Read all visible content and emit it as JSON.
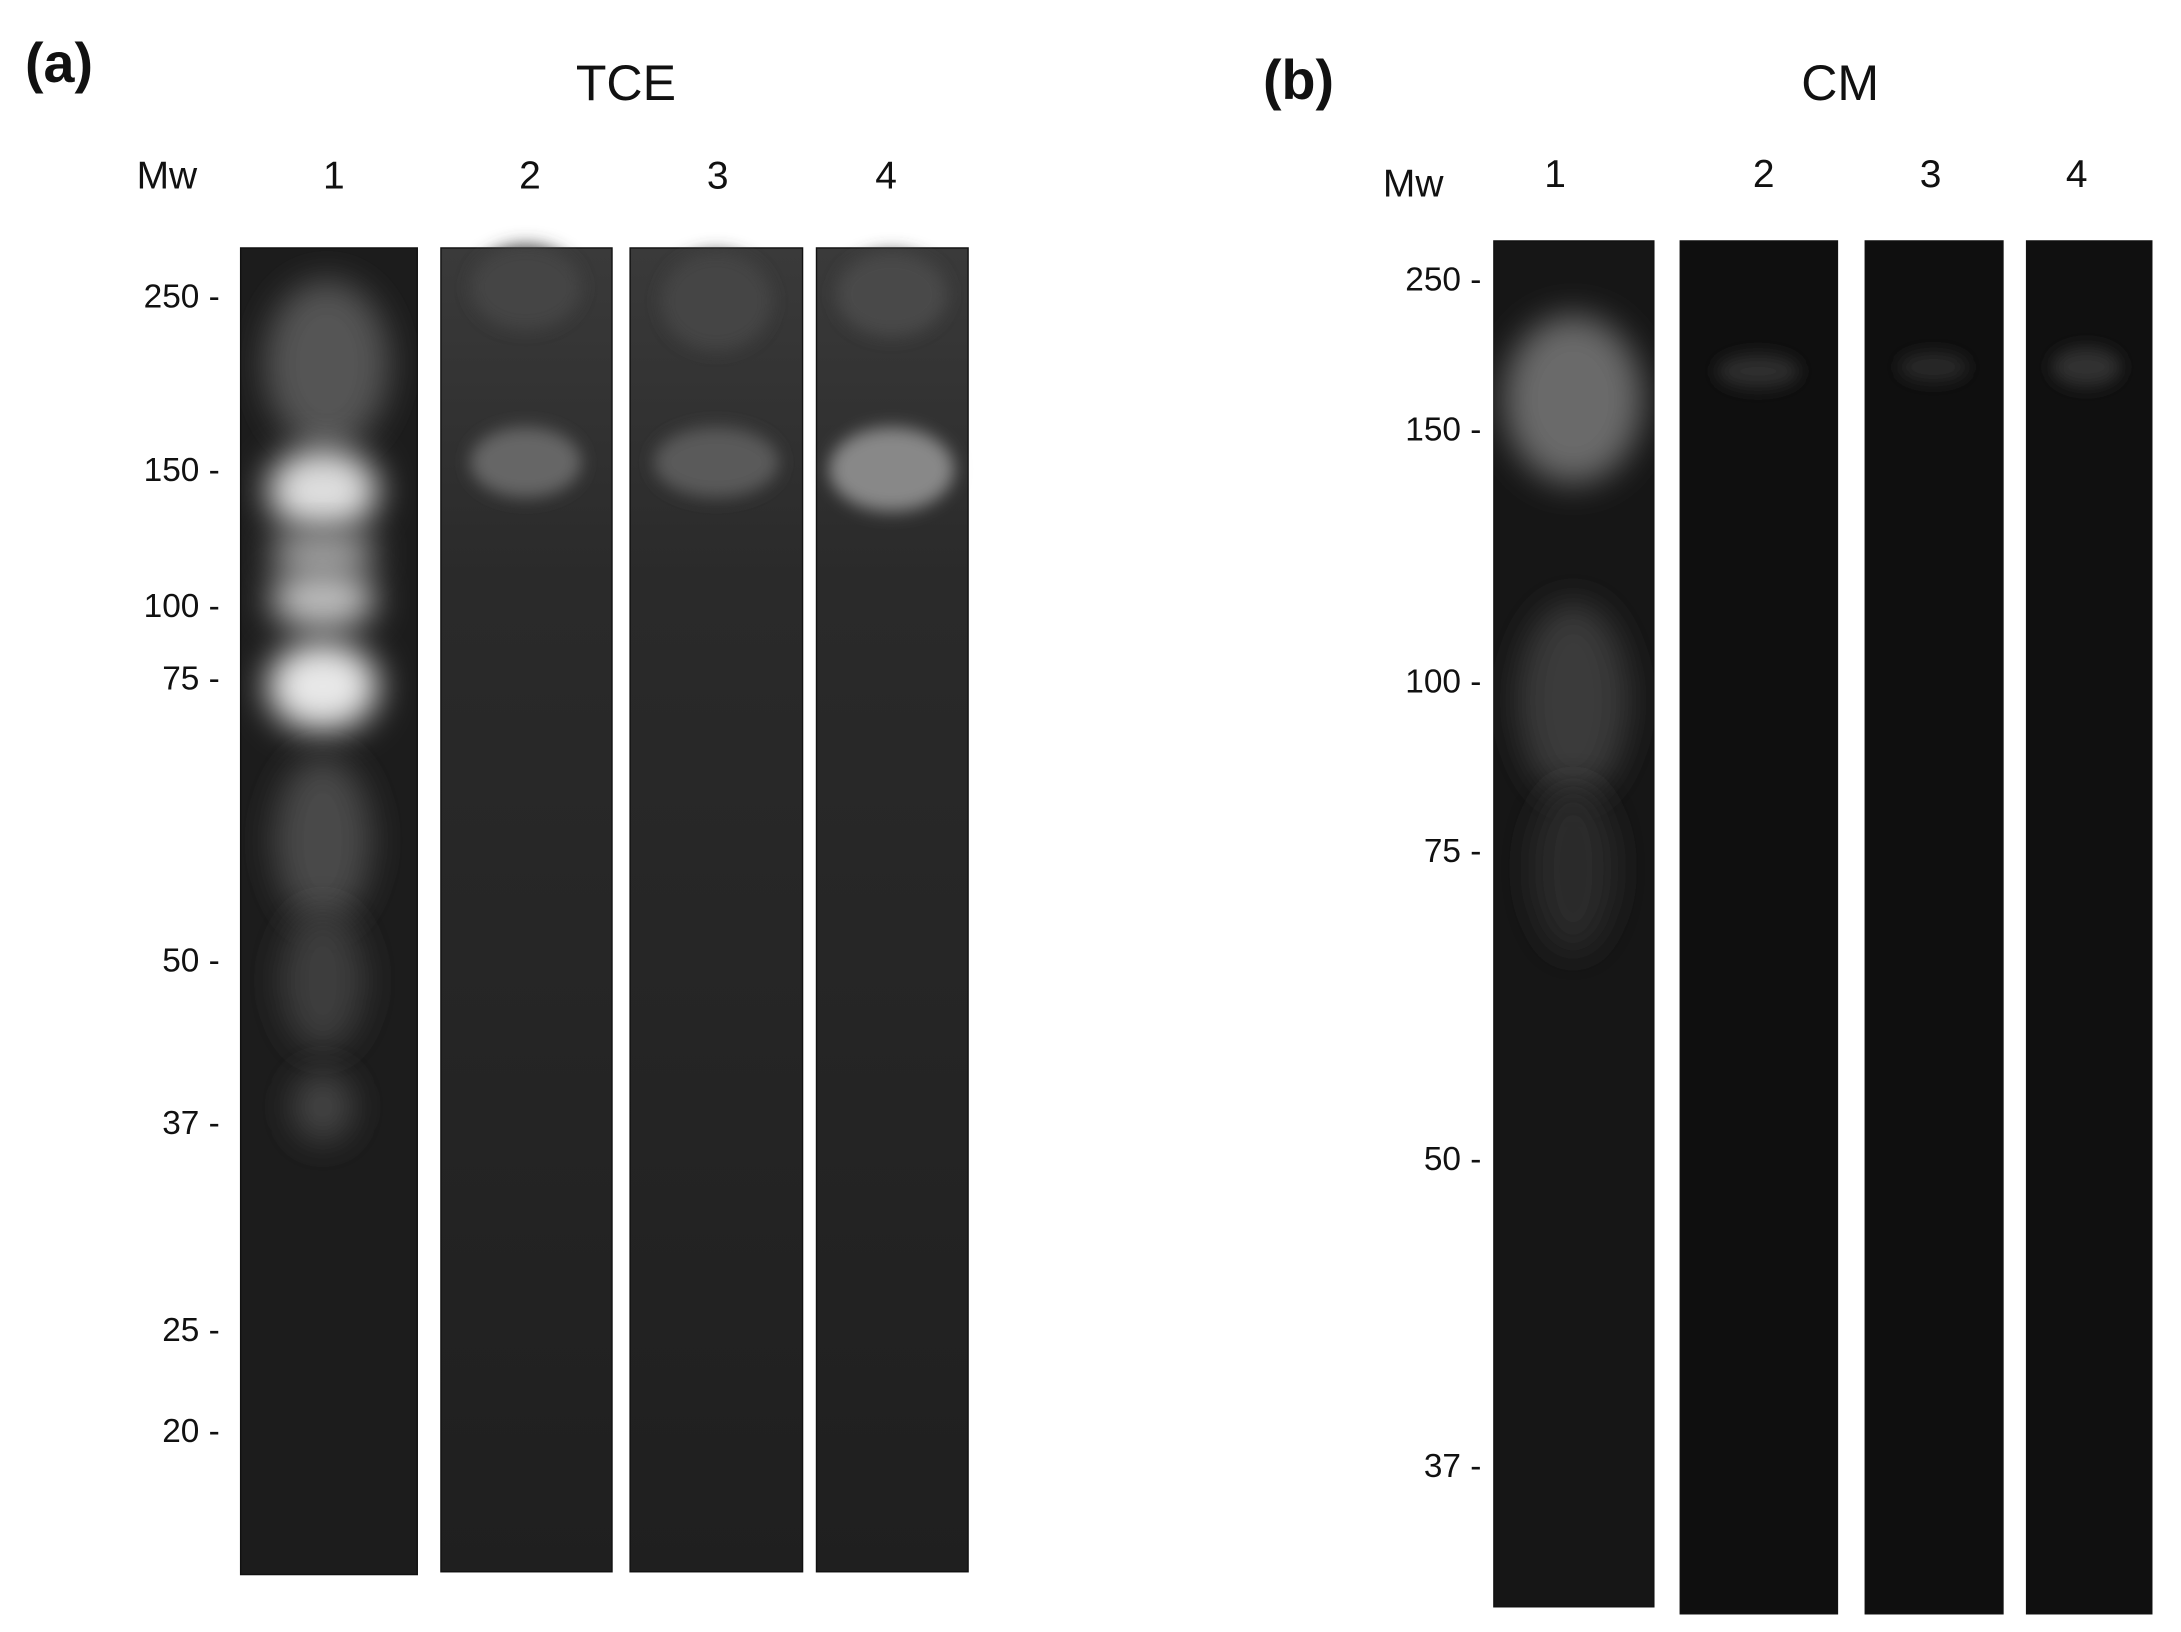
{
  "panels": [
    {
      "label": "(a)",
      "title": "TCE",
      "mw_label": "Mw",
      "lanes": [
        "1",
        "2",
        "3",
        "4"
      ],
      "markers": [
        "250 -",
        "150 -",
        "100 -",
        "75 -",
        "50 -",
        "37 -",
        "25 -",
        "20 -"
      ]
    },
    {
      "label": "(b)",
      "title": "CM",
      "mw_label": "Mw",
      "lanes": [
        "1",
        "2",
        "3",
        "4"
      ],
      "markers": [
        "250 -",
        "150 -",
        "100 -",
        "75 -",
        "50 -",
        "37 -"
      ]
    }
  ]
}
